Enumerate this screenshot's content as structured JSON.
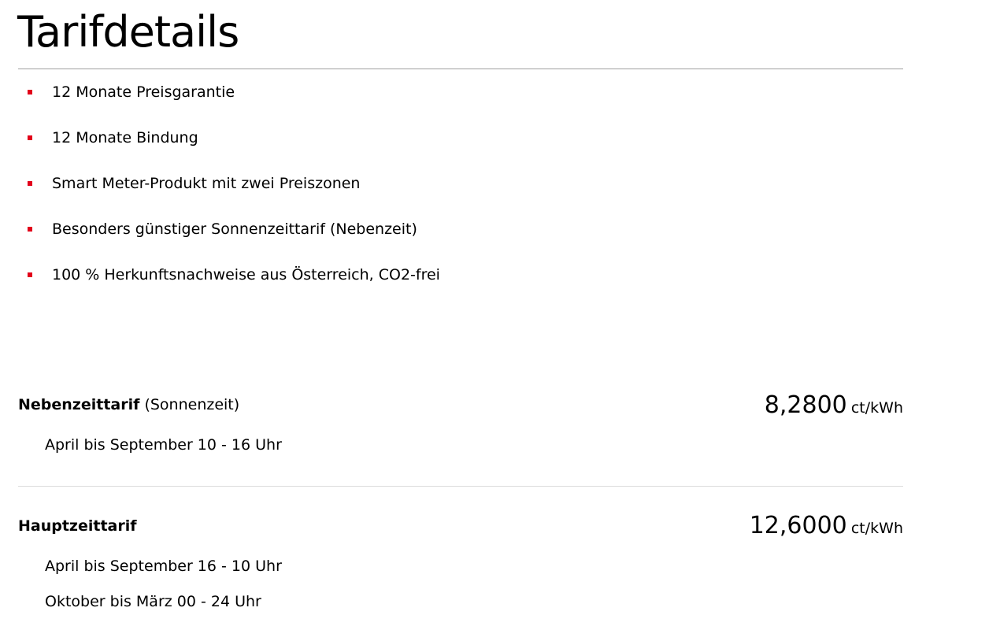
{
  "title": "Tarifdetails",
  "accent_color": "#e2001a",
  "features": [
    "12 Monate Preisgarantie",
    "12 Monate Bindung",
    "Smart Meter-Produkt mit zwei Preiszonen",
    "Besonders günstiger Sonnenzeittarif (Nebenzeit)",
    "100 % Herkunftsnachweise aus Österreich, CO2-frei"
  ],
  "tariffs": [
    {
      "name": "Nebenzeittarif",
      "qualifier": "(Sonnenzeit)",
      "price": "8,2800",
      "unit": "ct/kWh",
      "times": [
        "April bis September 10 - 16 Uhr"
      ]
    },
    {
      "name": "Hauptzeittarif",
      "qualifier": "",
      "price": "12,6000",
      "unit": "ct/kWh",
      "times": [
        "April bis September 16 - 10 Uhr",
        "Oktober bis März 00 - 24 Uhr"
      ]
    }
  ]
}
